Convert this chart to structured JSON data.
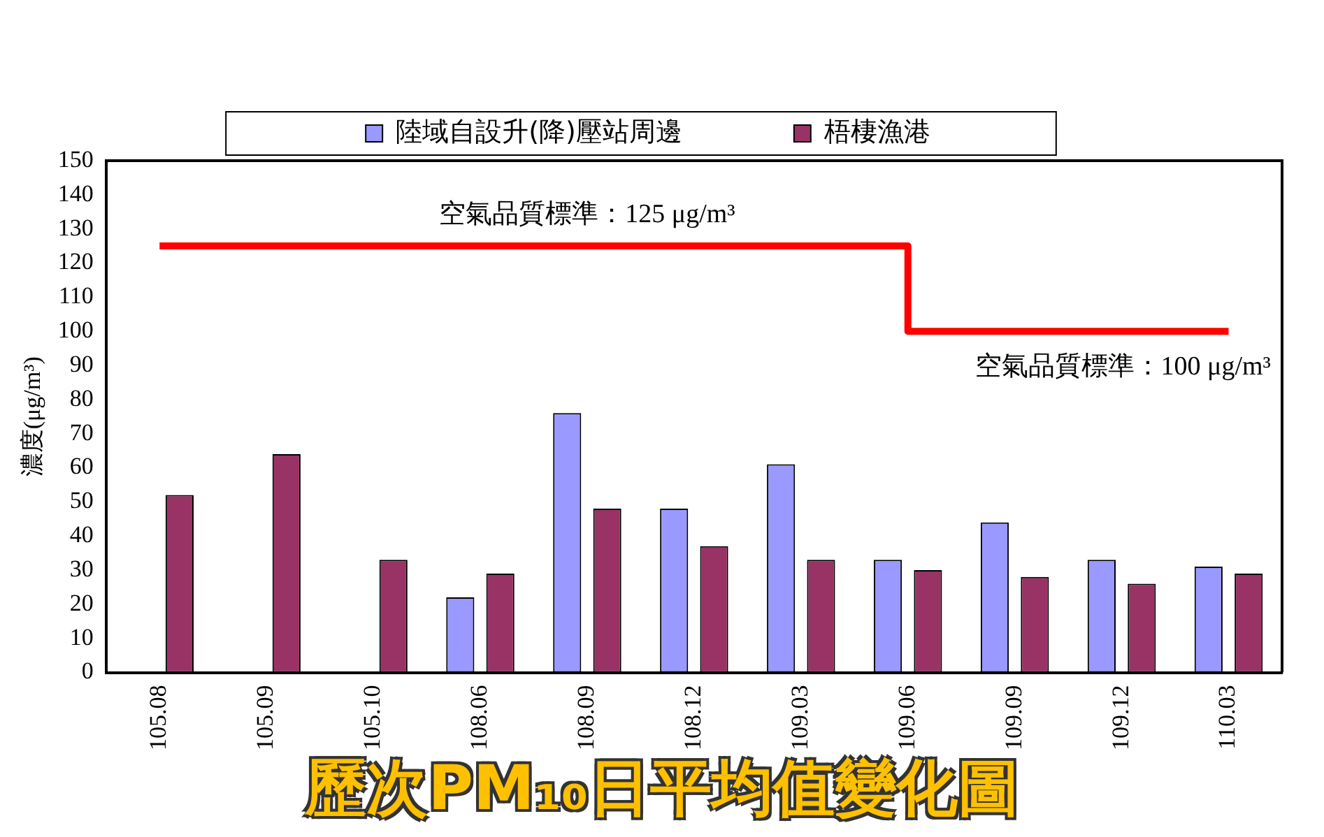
{
  "chart_data": {
    "type": "bar",
    "title": "歷次PM₁₀日平均值變化圖",
    "ylabel": "濃度(μg/m³)",
    "categories": [
      "105.08",
      "105.09",
      "105.10",
      "108.06",
      "108.09",
      "108.12",
      "109.03",
      "109.06",
      "109.09",
      "109.12",
      "110.03"
    ],
    "series": [
      {
        "name": "陸域自設升(降)壓站周邊",
        "color": "#9999ff",
        "values": [
          null,
          null,
          null,
          22,
          76,
          48,
          61,
          33,
          44,
          33,
          31
        ]
      },
      {
        "name": "梧棲漁港",
        "color": "#993366",
        "values": [
          52,
          64,
          33,
          29,
          48,
          37,
          33,
          30,
          28,
          26,
          29
        ]
      },
      {
        "type": "step",
        "color": "#ff0000",
        "values": [
          125,
          125,
          125,
          125,
          125,
          125,
          125,
          125,
          100,
          100,
          100
        ]
      }
    ],
    "annotations": [
      "空氣品質標準：125 μg/m³",
      "空氣品質標準：100 μg/m³"
    ],
    "ylim": [
      0,
      150
    ],
    "yticks": [
      0,
      10,
      20,
      30,
      40,
      50,
      60,
      70,
      80,
      90,
      100,
      110,
      120,
      130,
      140,
      150
    ],
    "grid": false,
    "legend": "top"
  }
}
